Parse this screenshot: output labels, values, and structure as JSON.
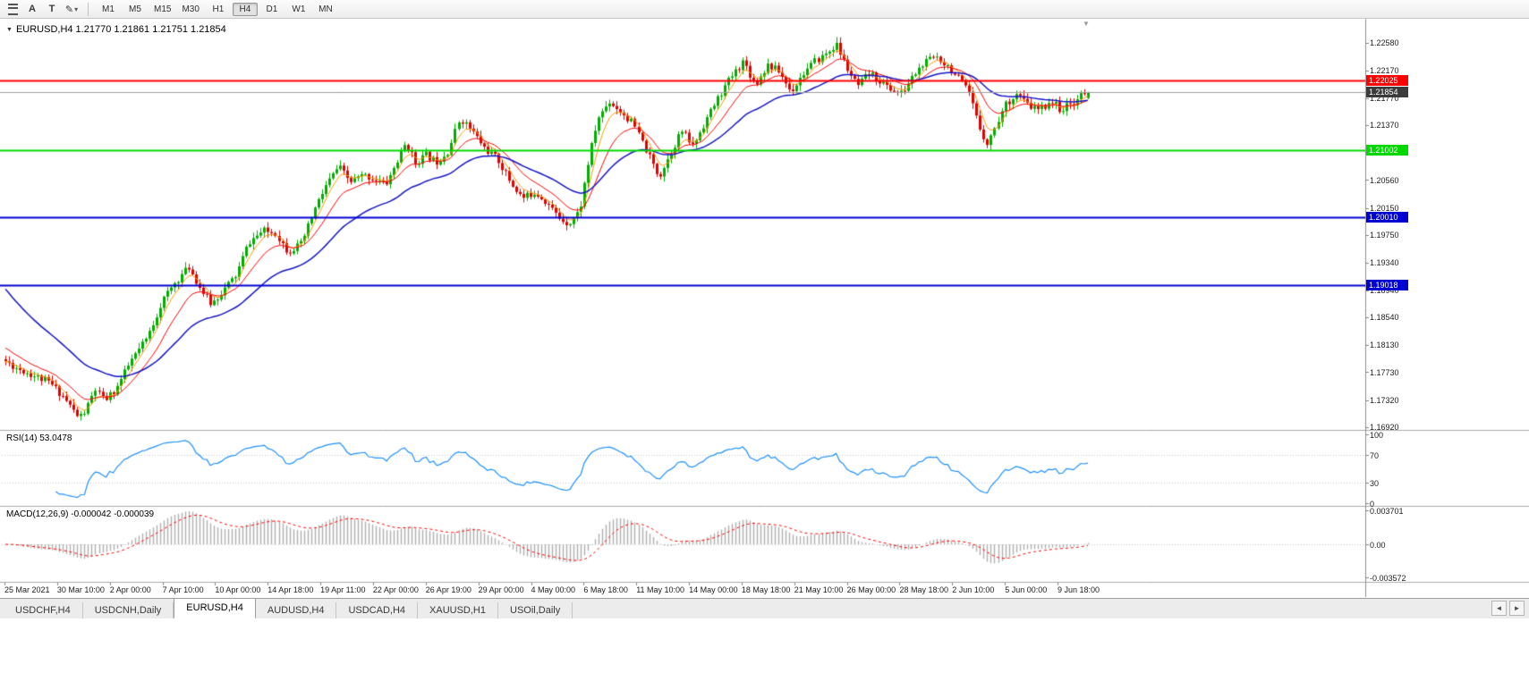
{
  "toolbar": {
    "icons": [
      {
        "name": "hamburger-icon",
        "glyph": "≡"
      },
      {
        "name": "cursor-tool-icon",
        "glyph": "A"
      },
      {
        "name": "text-tool-icon",
        "glyph": "T"
      },
      {
        "name": "draw-tool-icon",
        "glyph": "✎"
      },
      {
        "name": "dropdown-arrow-icon",
        "glyph": "▾"
      }
    ],
    "timeframes": [
      "M1",
      "M5",
      "M15",
      "M30",
      "H1",
      "H4",
      "D1",
      "W1",
      "MN"
    ],
    "active_timeframe": "H4"
  },
  "chart": {
    "symbol_marker": "▼",
    "title": "EURUSD,H4 1.21770 1.21861 1.21751 1.21854",
    "shift_marker": "▼"
  },
  "price_axis": {
    "labels": [
      "1.22580",
      "1.22170",
      "1.21770",
      "1.21370",
      "1.20970",
      "1.20560",
      "1.20150",
      "1.19750",
      "1.19340",
      "1.18940",
      "1.18540",
      "1.18130",
      "1.17730",
      "1.17320",
      "1.16920"
    ]
  },
  "hlines": [
    {
      "price": 1.22025,
      "label": "1.22025",
      "color": "#FF0000",
      "width": 2
    },
    {
      "price": 1.21002,
      "label": "1.21002",
      "color": "#00D800",
      "width": 2
    },
    {
      "price": 1.2001,
      "label": "1.20010",
      "color": "#0000D2",
      "width": 2
    },
    {
      "price": 1.19018,
      "label": "1.19018",
      "color": "#0000D2",
      "width": 2
    }
  ],
  "current_price": {
    "value": 1.21854,
    "label": "1.21854",
    "line_color": "#9C9C9C",
    "badge_color": "#3B3B3B"
  },
  "time_axis": {
    "labels": [
      "25 Mar 2021",
      "30 Mar 10:00",
      "2 Apr 00:00",
      "7 Apr 10:00",
      "10 Apr 00:00",
      "14 Apr 18:00",
      "19 Apr 11:00",
      "22 Apr 00:00",
      "26 Apr 19:00",
      "29 Apr 00:00",
      "4 May 00:00",
      "6 May 18:00",
      "11 May 10:00",
      "14 May 00:00",
      "18 May 18:00",
      "21 May 10:00",
      "26 May 00:00",
      "28 May 18:00",
      "2 Jun 10:00",
      "5 Jun 00:00",
      "9 Jun 18:00"
    ]
  },
  "rsi_panel": {
    "label": "RSI(14) 53.0478",
    "period": 14,
    "value": "53.0478",
    "line_color": "#1E90FF",
    "levels": [
      {
        "v": 100,
        "label": "100"
      },
      {
        "v": 70,
        "label": "70"
      },
      {
        "v": 30,
        "label": "30"
      },
      {
        "v": 0,
        "label": "0"
      }
    ]
  },
  "macd_panel": {
    "label": "MACD(12,26,9) -0.000042 -0.000039",
    "fast": 12,
    "slow": 26,
    "signal": 9,
    "macd_value": "-0.000042",
    "signal_value": "-0.000039",
    "hist_color": "#B0B0B0",
    "signal_color": "#FF0000",
    "levels": [
      {
        "v": 0.003701,
        "label": "0.003701"
      },
      {
        "v": 0,
        "label": "0.00"
      },
      {
        "v": -0.003572,
        "label": "-0.003572"
      }
    ]
  },
  "tabs": {
    "items": [
      {
        "label": "USDCHF,H4",
        "active": false
      },
      {
        "label": "USDCNH,Daily",
        "active": false
      },
      {
        "label": "EURUSD,H4",
        "active": true
      },
      {
        "label": "AUDUSD,H4",
        "active": false
      },
      {
        "label": "USDCAD,H4",
        "active": false
      },
      {
        "label": "XAUUSD,H1",
        "active": false
      },
      {
        "label": "USOil,Daily",
        "active": false
      }
    ],
    "scroll_left": "◄",
    "scroll_right": "►"
  },
  "chart_data": {
    "type": "candlestick",
    "symbol": "EURUSD",
    "timeframe": "H4",
    "visible_range": {
      "start": "25 Mar 2021",
      "end": "10 Jun 2021",
      "price_min": 1.1688,
      "price_max": 1.229
    },
    "current_ohlc": {
      "open": 1.2177,
      "high": 1.21861,
      "low": 1.21751,
      "close": 1.21854
    },
    "num_candles": 302,
    "seed": 11,
    "noise": {
      "close": 0.0011,
      "wick_min": 0.00015,
      "wick_max": 0.0007
    },
    "bull_color": "#00AE00",
    "bear_color": "#E00000",
    "moving_averages": [
      {
        "period": 5,
        "color": "#FF9800",
        "width": 1,
        "init": null
      },
      {
        "period": 13,
        "color": "#FF0000",
        "width": 1,
        "init": 1.1812
      },
      {
        "period": 34,
        "color": "#1515C8",
        "width": 1.5,
        "init": 1.1902
      }
    ],
    "indicators": {
      "rsi_period": 14,
      "macd_fast": 12,
      "macd_slow": 26,
      "macd_signal": 9
    },
    "price_path": [
      [
        6,
        1.1792
      ],
      [
        20,
        1.1781
      ],
      [
        40,
        1.1769
      ],
      [
        60,
        1.1757
      ],
      [
        75,
        1.1737
      ],
      [
        92,
        1.1706
      ],
      [
        100,
        1.1716
      ],
      [
        110,
        1.1748
      ],
      [
        120,
        1.1731
      ],
      [
        132,
        1.1746
      ],
      [
        150,
        1.179
      ],
      [
        168,
        1.1823
      ],
      [
        185,
        1.1878
      ],
      [
        200,
        1.1906
      ],
      [
        215,
        1.1928
      ],
      [
        228,
        1.1896
      ],
      [
        240,
        1.1873
      ],
      [
        255,
        1.1896
      ],
      [
        268,
        1.1916
      ],
      [
        282,
        1.1964
      ],
      [
        298,
        1.1981
      ],
      [
        312,
        1.1978
      ],
      [
        325,
        1.1951
      ],
      [
        340,
        1.1961
      ],
      [
        355,
        1.2012
      ],
      [
        368,
        1.2048
      ],
      [
        382,
        1.2076
      ],
      [
        395,
        1.2053
      ],
      [
        410,
        1.2063
      ],
      [
        422,
        1.2058
      ],
      [
        435,
        1.2049
      ],
      [
        450,
        1.2089
      ],
      [
        458,
        1.2112
      ],
      [
        468,
        1.2081
      ],
      [
        480,
        1.2093
      ],
      [
        492,
        1.2083
      ],
      [
        505,
        1.2099
      ],
      [
        518,
        1.2148
      ],
      [
        532,
        1.2127
      ],
      [
        545,
        1.2103
      ],
      [
        560,
        1.2086
      ],
      [
        575,
        1.2051
      ],
      [
        588,
        1.2029
      ],
      [
        602,
        1.2039
      ],
      [
        615,
        1.2023
      ],
      [
        628,
        1.2001
      ],
      [
        640,
        1.1992
      ],
      [
        652,
        1.2011
      ],
      [
        662,
        1.2086
      ],
      [
        672,
        1.2146
      ],
      [
        685,
        1.2172
      ],
      [
        698,
        1.2157
      ],
      [
        712,
        1.2138
      ],
      [
        726,
        1.2099
      ],
      [
        740,
        1.2061
      ],
      [
        752,
        1.2093
      ],
      [
        765,
        1.2129
      ],
      [
        778,
        1.2106
      ],
      [
        792,
        1.2143
      ],
      [
        806,
        1.2176
      ],
      [
        820,
        1.2206
      ],
      [
        835,
        1.2232
      ],
      [
        848,
        1.2196
      ],
      [
        862,
        1.2226
      ],
      [
        875,
        1.2216
      ],
      [
        888,
        1.2186
      ],
      [
        902,
        1.2213
      ],
      [
        915,
        1.2231
      ],
      [
        928,
        1.2243
      ],
      [
        938,
        1.2256
      ],
      [
        950,
        1.2221
      ],
      [
        962,
        1.2193
      ],
      [
        975,
        1.2213
      ],
      [
        988,
        1.2201
      ],
      [
        1000,
        1.2189
      ],
      [
        1012,
        1.2183
      ],
      [
        1025,
        1.2211
      ],
      [
        1038,
        1.2229
      ],
      [
        1050,
        1.2239
      ],
      [
        1062,
        1.2226
      ],
      [
        1075,
        1.2206
      ],
      [
        1088,
        1.2181
      ],
      [
        1098,
        1.2136
      ],
      [
        1108,
        1.2109
      ],
      [
        1118,
        1.2141
      ],
      [
        1128,
        1.2169
      ],
      [
        1140,
        1.2183
      ],
      [
        1152,
        1.2166
      ],
      [
        1165,
        1.2159
      ],
      [
        1178,
        1.2173
      ],
      [
        1190,
        1.2159
      ],
      [
        1202,
        1.2169
      ],
      [
        1216,
        1.2185
      ]
    ]
  }
}
